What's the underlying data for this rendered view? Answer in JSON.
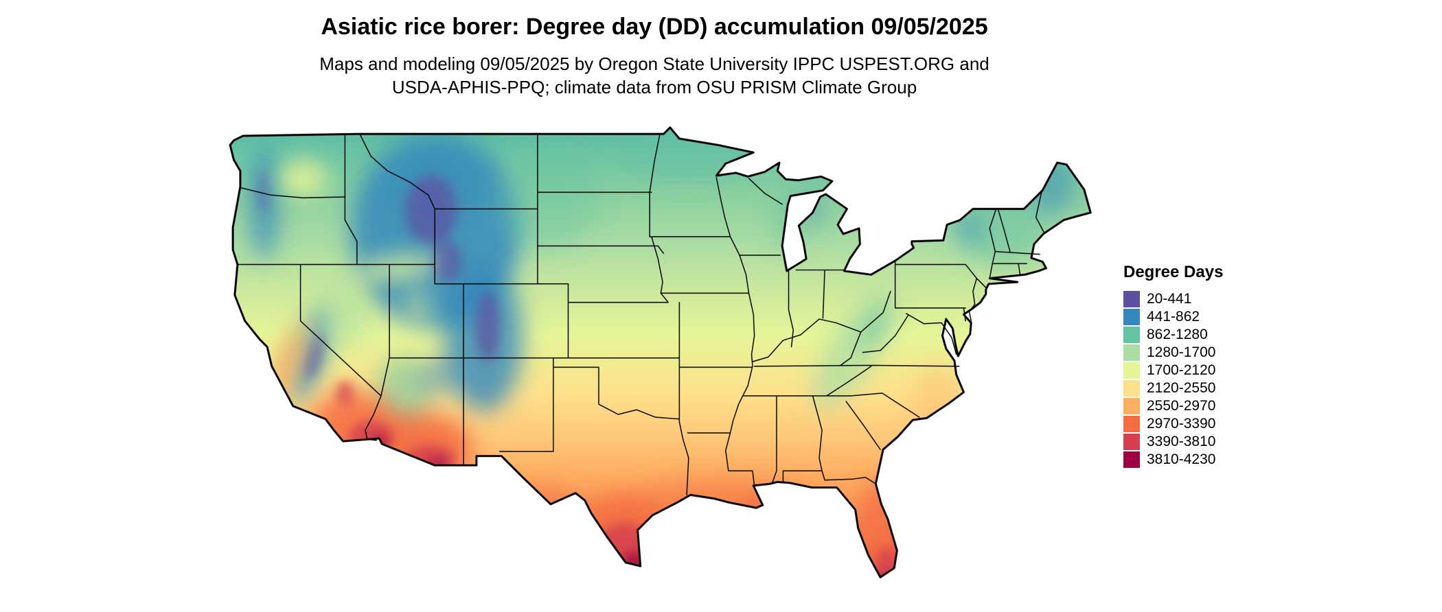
{
  "header": {
    "title": "Asiatic rice borer: Degree day (DD) accumulation 09/05/2025",
    "subtitle_line1": "Maps and modeling 09/05/2025 by Oregon State University IPPC USPEST.ORG and",
    "subtitle_line2": "USDA-APHIS-PPQ; climate data from OSU PRISM Climate Group"
  },
  "legend": {
    "title": "Degree Days",
    "items": [
      {
        "label": "20-441",
        "color": "#5e4fa2"
      },
      {
        "label": "441-862",
        "color": "#3288bd"
      },
      {
        "label": "862-1280",
        "color": "#66c2a5"
      },
      {
        "label": "1280-1700",
        "color": "#abdda4"
      },
      {
        "label": "1700-2120",
        "color": "#e6f598"
      },
      {
        "label": "2120-2550",
        "color": "#fee08b"
      },
      {
        "label": "2550-2970",
        "color": "#fdae61"
      },
      {
        "label": "2970-3390",
        "color": "#f46d43"
      },
      {
        "label": "3390-3810",
        "color": "#d53e4f"
      },
      {
        "label": "3810-4230",
        "color": "#9e0142"
      }
    ]
  },
  "map": {
    "region": "Continental United States",
    "model": "Asiatic rice borer degree day accumulation"
  },
  "chart_data": {
    "type": "heatmap",
    "title": "Asiatic rice borer: Degree day (DD) accumulation 09/05/2025",
    "legend_title": "Degree Days",
    "legend_position": "right",
    "units": "degree days",
    "classes": [
      {
        "range": "20-441",
        "min": 20,
        "max": 441,
        "color": "#5e4fa2"
      },
      {
        "range": "441-862",
        "min": 441,
        "max": 862,
        "color": "#3288bd"
      },
      {
        "range": "862-1280",
        "min": 862,
        "max": 1280,
        "color": "#66c2a5"
      },
      {
        "range": "1280-1700",
        "min": 1280,
        "max": 1700,
        "color": "#abdda4"
      },
      {
        "range": "1700-2120",
        "min": 1700,
        "max": 2120,
        "color": "#e6f598"
      },
      {
        "range": "2120-2550",
        "min": 2120,
        "max": 2550,
        "color": "#fee08b"
      },
      {
        "range": "2550-2970",
        "min": 2550,
        "max": 2970,
        "color": "#fdae61"
      },
      {
        "range": "2970-3390",
        "min": 2970,
        "max": 3390,
        "color": "#f46d43"
      },
      {
        "range": "3390-3810",
        "min": 3390,
        "max": 3810,
        "color": "#d53e4f"
      },
      {
        "range": "3810-4230",
        "min": 3810,
        "max": 4230,
        "color": "#9e0142"
      }
    ]
  }
}
